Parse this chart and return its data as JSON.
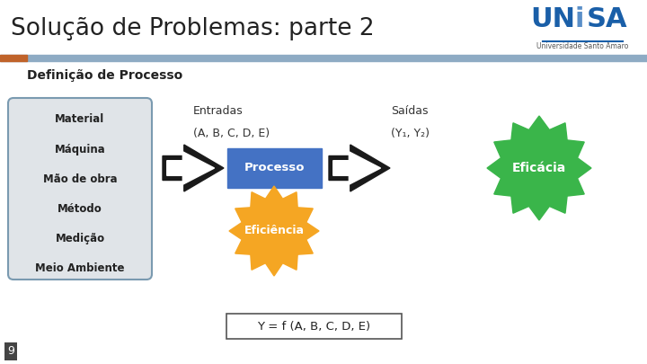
{
  "title": "Solução de Problemas: parte 2",
  "subtitle": "Definição de Processo",
  "bg_color": "#ffffff",
  "title_color": "#222222",
  "header_bar_color": "#8eabc4",
  "header_bar_accent": "#c0632a",
  "subtitle_color": "#222222",
  "box_items": [
    "Material",
    "Máquina",
    "Mão de obra",
    "Método",
    "Medição",
    "Meio Ambiente"
  ],
  "box_bg": "#e0e4e8",
  "box_border": "#7a9ab0",
  "entradas_label1": "Entradas",
  "entradas_label2": "(A, B, C, D, E)",
  "saidas_label1": "Saídas",
  "saidas_label2": "(Y₁, Y₂)",
  "processo_label": "Processo",
  "processo_color": "#4472c4",
  "eficiencia_label": "Eficiência",
  "eficiencia_color": "#f5a623",
  "eficacia_label": "Eficácia",
  "eficacia_color": "#3ab54a",
  "formula_label": "Y = f (A, B, C, D, E)",
  "page_number": "9",
  "arrow_color": "#1a1a1a"
}
